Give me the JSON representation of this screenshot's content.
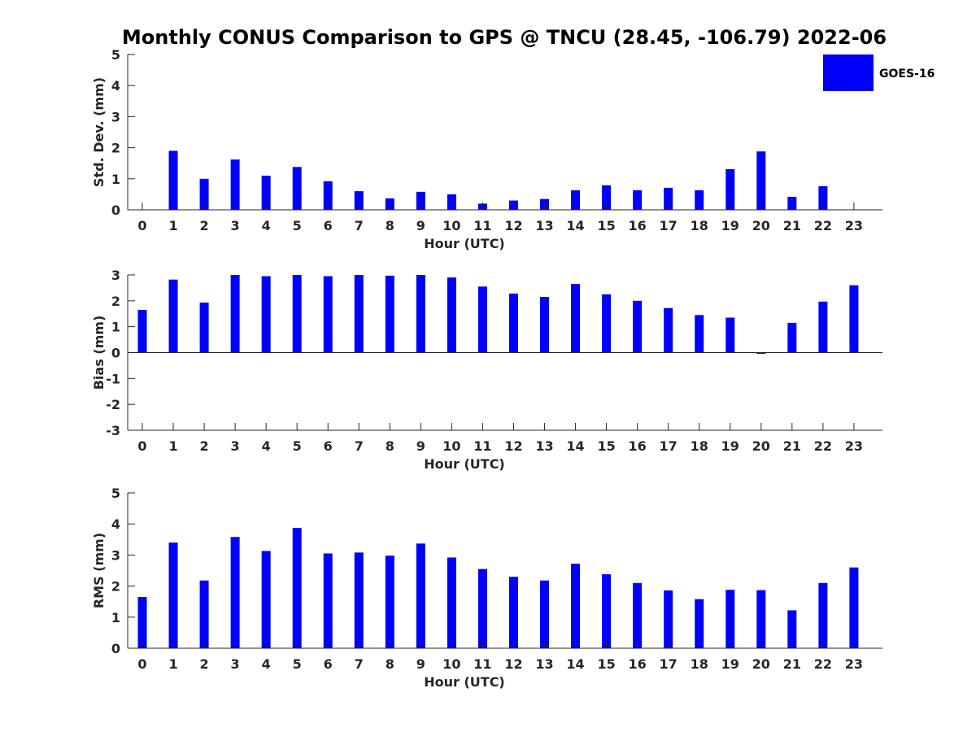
{
  "title": "Monthly CONUS Comparison to GPS @ TNCU (28.45, -106.79) 2022-06",
  "legend": {
    "label": "GOES-16",
    "color": "#0000ff",
    "placement": "top-right"
  },
  "colors": {
    "bar": "#0000ff",
    "axis": "#262626"
  },
  "chart_data": [
    {
      "type": "bar",
      "xlabel": "Hour (UTC)",
      "ylabel": "Std. Dev. (mm)",
      "ylim": [
        0,
        5
      ],
      "yticks": [
        "0",
        "1",
        "2",
        "3",
        "4",
        "5"
      ],
      "categories": [
        "0",
        "1",
        "2",
        "3",
        "4",
        "5",
        "6",
        "7",
        "8",
        "9",
        "10",
        "11",
        "12",
        "13",
        "14",
        "15",
        "16",
        "17",
        "18",
        "19",
        "20",
        "21",
        "22",
        "23"
      ],
      "series": [
        {
          "name": "GOES-16",
          "values": [
            0,
            1.9,
            1.0,
            1.62,
            1.1,
            1.38,
            0.92,
            0.6,
            0.37,
            0.58,
            0.5,
            0.2,
            0.3,
            0.35,
            0.63,
            0.79,
            0.63,
            0.71,
            0.63,
            1.31,
            1.88,
            0.42,
            0.76,
            0
          ]
        }
      ],
      "grid": false
    },
    {
      "type": "bar",
      "xlabel": "Hour (UTC)",
      "ylabel": "Bias (mm)",
      "ylim": [
        -3,
        3
      ],
      "yticks": [
        "-3",
        "-2",
        "-1",
        "0",
        "1",
        "2",
        "3"
      ],
      "categories": [
        "0",
        "1",
        "2",
        "3",
        "4",
        "5",
        "6",
        "7",
        "8",
        "9",
        "10",
        "11",
        "12",
        "13",
        "14",
        "15",
        "16",
        "17",
        "18",
        "19",
        "20",
        "21",
        "22",
        "23"
      ],
      "series": [
        {
          "name": "GOES-16",
          "values": [
            1.65,
            2.82,
            1.93,
            3.0,
            2.95,
            3.0,
            2.95,
            3.0,
            2.97,
            3.0,
            2.9,
            2.55,
            2.28,
            2.15,
            2.65,
            2.25,
            2.0,
            1.72,
            1.45,
            1.35,
            -0.05,
            1.15,
            1.97,
            2.6
          ]
        }
      ],
      "grid": false
    },
    {
      "type": "bar",
      "xlabel": "Hour (UTC)",
      "ylabel": "RMS (mm)",
      "ylim": [
        0,
        5
      ],
      "yticks": [
        "0",
        "1",
        "2",
        "3",
        "4",
        "5"
      ],
      "categories": [
        "0",
        "1",
        "2",
        "3",
        "4",
        "5",
        "6",
        "7",
        "8",
        "9",
        "10",
        "11",
        "12",
        "13",
        "14",
        "15",
        "16",
        "17",
        "18",
        "19",
        "20",
        "21",
        "22",
        "23"
      ],
      "series": [
        {
          "name": "GOES-16",
          "values": [
            1.65,
            3.4,
            2.18,
            3.58,
            3.13,
            3.87,
            3.05,
            3.08,
            2.98,
            3.37,
            2.92,
            2.55,
            2.3,
            2.18,
            2.72,
            2.38,
            2.1,
            1.86,
            1.58,
            1.88,
            1.87,
            1.22,
            2.1,
            2.6
          ]
        }
      ],
      "grid": false
    }
  ]
}
